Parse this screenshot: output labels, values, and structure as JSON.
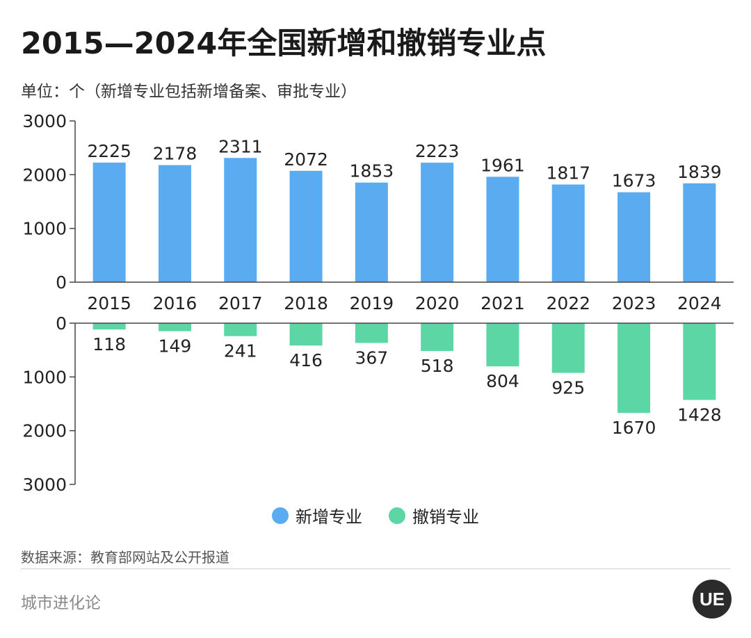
{
  "title": "2015—2024年全国新增和撤销专业点",
  "unit": "单位：个（新增专业包括新增备案、审批专业）",
  "legend": [
    {
      "label": "新增专业",
      "color": "#5aabf0"
    },
    {
      "label": "撤销专业",
      "color": "#5dd6a6"
    }
  ],
  "source": "数据来源：教育部网站及公开报道",
  "brand": "城市进化论",
  "logo_text": "UE",
  "chart_data": {
    "type": "bar",
    "categories": [
      "2015",
      "2016",
      "2017",
      "2018",
      "2019",
      "2020",
      "2021",
      "2022",
      "2023",
      "2024"
    ],
    "series": [
      {
        "name": "新增专业",
        "values": [
          2225,
          2178,
          2311,
          2072,
          1853,
          2223,
          1961,
          1817,
          1673,
          1839
        ],
        "color": "#5aabf0"
      },
      {
        "name": "撤销专业",
        "values": [
          118,
          149,
          241,
          416,
          367,
          518,
          804,
          925,
          1670,
          1428
        ],
        "color": "#5dd6a6"
      }
    ],
    "ylim": [
      0,
      3000
    ],
    "yticks_top": [
      "3000",
      "2000",
      "1000",
      "0"
    ],
    "yticks_bottom": [
      "0",
      "1000",
      "2000",
      "3000"
    ]
  }
}
